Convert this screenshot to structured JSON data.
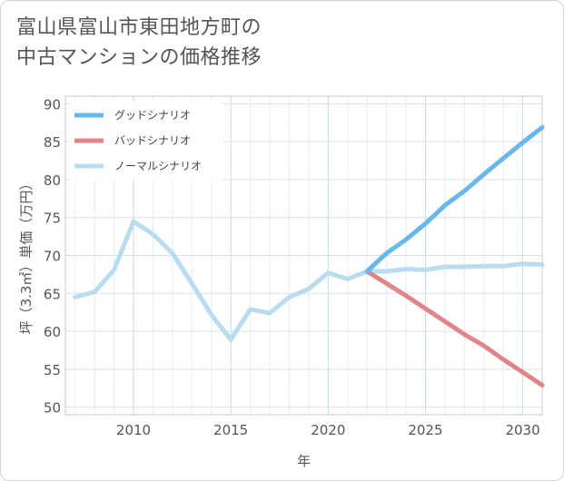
{
  "title": {
    "line1": "富山県富山市東田地方町の",
    "line2": "中古マンションの価格推移"
  },
  "chart_data": {
    "type": "line",
    "xlabel": "年",
    "ylabel": "坪（3.3㎡）単価（万円）",
    "xlim": [
      2006.5,
      2031
    ],
    "ylim": [
      49,
      91
    ],
    "x_ticks": [
      2010,
      2015,
      2020,
      2025,
      2030
    ],
    "y_ticks": [
      50,
      55,
      60,
      65,
      70,
      75,
      80,
      85,
      90
    ],
    "grid": true,
    "legend_position": "top-left",
    "series": [
      {
        "name": "グッドシナリオ",
        "color": "#6ab8ea",
        "x": [
          2022,
          2023,
          2024,
          2025,
          2026,
          2027,
          2028,
          2029,
          2030,
          2031
        ],
        "y": [
          67.9,
          70.3,
          72.1,
          74.2,
          76.6,
          78.5,
          80.7,
          82.8,
          84.9,
          86.9
        ]
      },
      {
        "name": "バッドシナリオ",
        "color": "#e0868b",
        "x": [
          2022,
          2023,
          2024,
          2025,
          2026,
          2027,
          2028,
          2029,
          2030,
          2031
        ],
        "y": [
          67.9,
          66.3,
          64.7,
          63.0,
          61.3,
          59.6,
          58.1,
          56.3,
          54.6,
          52.9
        ]
      },
      {
        "name": "ノーマルシナリオ",
        "color": "#b9dcef",
        "x": [
          2007,
          2008,
          2009,
          2010,
          2011,
          2012,
          2013,
          2014,
          2015,
          2016,
          2017,
          2018,
          2019,
          2020,
          2021,
          2022,
          2023,
          2024,
          2025,
          2026,
          2027,
          2028,
          2029,
          2030,
          2031
        ],
        "y": [
          64.5,
          65.2,
          68.1,
          74.5,
          72.8,
          70.3,
          66.3,
          62.2,
          58.9,
          62.9,
          62.4,
          64.5,
          65.6,
          67.7,
          66.9,
          67.9,
          67.9,
          68.2,
          68.1,
          68.5,
          68.5,
          68.6,
          68.6,
          68.9,
          68.8
        ]
      }
    ]
  }
}
